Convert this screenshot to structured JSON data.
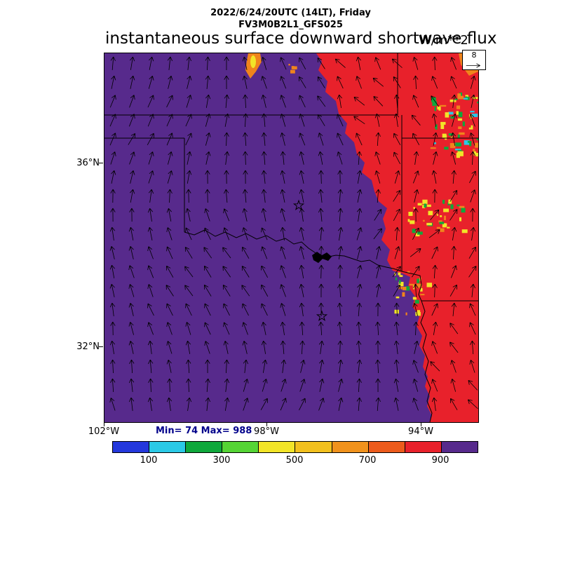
{
  "header": {
    "datetime_line": "2022/6/24/20UTC (14LT), Friday",
    "model_line": "FV3M0B2L1_GFS025",
    "title": "instantaneous surface downward shortwave flux",
    "units": "W/m**2"
  },
  "map": {
    "lat_labels": [
      "36°N",
      "32°N"
    ],
    "lon_labels": [
      "102°W",
      "98°W",
      "94°W"
    ],
    "reference_vector_value": "8"
  },
  "stats": {
    "minmax_label": "Min= 74 Max= 988"
  },
  "colorbar": {
    "tick_labels": [
      "100",
      "300",
      "500",
      "700",
      "900"
    ],
    "segment_colors": [
      "#2438DC",
      "#2BC9E6",
      "#0FA83C",
      "#55D435",
      "#F2E428",
      "#F2C01E",
      "#F0921C",
      "#EC5B1C",
      "#E8212B",
      "#572A8C"
    ]
  },
  "palette": {
    "field_purple": "#572A8C",
    "field_red": "#E8212B",
    "field_orange": "#F0841C",
    "field_yellow": "#F2E428",
    "field_green": "#0FA83C",
    "field_cyan": "#2BC9E6",
    "minmax_text_color": "#00008B"
  },
  "chart_data": {
    "type": "heatmap",
    "title": "instantaneous surface downward shortwave flux",
    "units": "W/m**2",
    "min": 74,
    "max": 988,
    "colorbar_ticks": [
      100,
      300,
      500,
      700,
      900
    ],
    "lat_ticks": [
      "36°N",
      "32°N"
    ],
    "lon_ticks": [
      "102°W",
      "98°W",
      "94°W"
    ],
    "reference_vector": 8,
    "legend_position": "bottom",
    "notes": "Purple field covering most of domain corresponds to highest flux bin (>900); red region on east side ~700-900; speckled yellow/green/orange patches are cloud-reduced flux areas; black wind vectors overlaid on grid; state borders, Red River and two star city markers drawn."
  }
}
